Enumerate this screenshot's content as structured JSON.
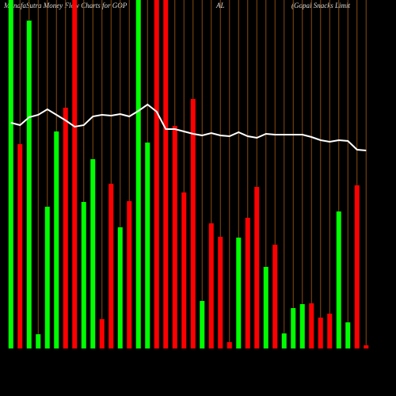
{
  "chart_data": {
    "type": "bar",
    "title_parts": [
      "MunafaSutra  Money Flow  Charts for GOP",
      "AL",
      "(Gopal Snacks Limit"
    ],
    "categories": [
      null,
      null,
      null,
      null,
      null,
      null,
      null,
      null,
      null,
      null,
      null,
      null,
      null,
      null,
      null,
      null,
      null,
      null,
      null,
      null,
      null,
      null,
      null,
      null,
      null,
      null,
      null,
      null,
      null,
      null,
      null,
      null,
      null,
      null,
      null,
      null,
      null,
      null,
      null,
      null
    ],
    "values": [
      440,
      258,
      414,
      18,
      179,
      274,
      304,
      440,
      185,
      239,
      37,
      208,
      153,
      186,
      440,
      260,
      440,
      440,
      281,
      197,
      315,
      60,
      158,
      141,
      8,
      140,
      165,
      204,
      103,
      131,
      19,
      51,
      56,
      57,
      39,
      44,
      173,
      33,
      206,
      4
    ],
    "bar_colors": [
      "#00ff00",
      "#ff0000",
      "#00ff00",
      "#00ff00",
      "#00ff00",
      "#00ff00",
      "#ff0000",
      "#ff0000",
      "#00ff00",
      "#00ff00",
      "#ff0000",
      "#ff0000",
      "#00ff00",
      "#ff0000",
      "#00ff00",
      "#00ff00",
      "#ff0000",
      "#ff0000",
      "#ff0000",
      "#ff0000",
      "#ff0000",
      "#00ff00",
      "#ff0000",
      "#ff0000",
      "#ff0000",
      "#00ff00",
      "#ff0000",
      "#ff0000",
      "#00ff00",
      "#ff0000",
      "#00ff00",
      "#00ff00",
      "#00ff00",
      "#ff0000",
      "#ff0000",
      "#ff0000",
      "#00ff00",
      "#00ff00",
      "#ff0000",
      "#ff0000"
    ],
    "line": {
      "color": "#ffffff",
      "values": [
        285,
        282,
        292,
        295,
        302,
        295,
        288,
        280,
        282,
        293,
        295,
        294,
        296,
        293,
        300,
        308,
        299,
        277,
        277,
        274,
        271,
        269,
        272,
        269,
        268,
        273,
        268,
        266,
        271,
        270,
        270,
        270,
        270,
        267,
        263,
        261,
        263,
        262,
        251,
        250
      ]
    },
    "ylim": [
      0,
      440
    ],
    "grid": true,
    "grid_color": "#8b4a0f"
  }
}
